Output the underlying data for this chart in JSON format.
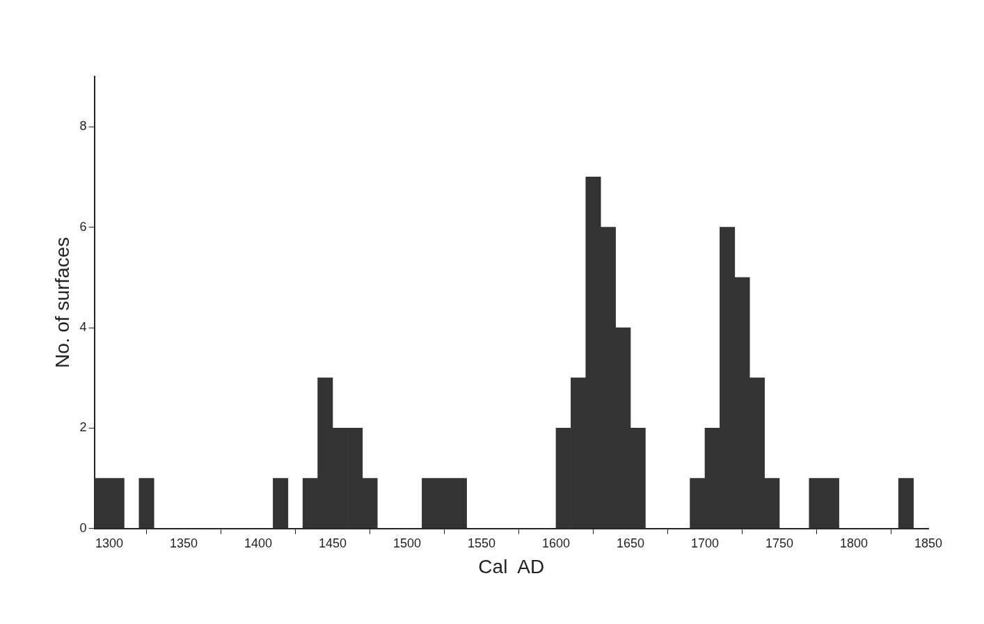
{
  "chart_data": {
    "type": "histogram",
    "xlabel": "Cal  AD",
    "ylabel": "No. of surfaces",
    "color": "#333333",
    "bins": [
      1290,
      1300,
      1310,
      1320,
      1330,
      1340,
      1350,
      1360,
      1370,
      1380,
      1390,
      1400,
      1410,
      1420,
      1430,
      1440,
      1450,
      1460,
      1470,
      1480,
      1490,
      1500,
      1510,
      1520,
      1530,
      1540,
      1550,
      1560,
      1570,
      1580,
      1590,
      1600,
      1610,
      1620,
      1630,
      1640,
      1650,
      1660,
      1670,
      1680,
      1690,
      1700,
      1710,
      1720,
      1730,
      1740,
      1750,
      1760,
      1770,
      1780,
      1790,
      1800,
      1810,
      1820,
      1830,
      1840
    ],
    "values": [
      1,
      1,
      0,
      1,
      0,
      0,
      0,
      0,
      0,
      0,
      0,
      0,
      1,
      0,
      1,
      3,
      2,
      2,
      1,
      0,
      0,
      0,
      1,
      1,
      1,
      0,
      0,
      0,
      0,
      0,
      0,
      2,
      3,
      7,
      6,
      4,
      2,
      0,
      0,
      0,
      1,
      2,
      6,
      5,
      3,
      1,
      0,
      0,
      1,
      1,
      0,
      0,
      0,
      0,
      1
    ],
    "xlim": [
      1290,
      1850
    ],
    "xticks": [
      1300,
      1350,
      1400,
      1450,
      1500,
      1550,
      1600,
      1650,
      1700,
      1750,
      1800,
      1850
    ],
    "ylim": [
      0,
      9
    ],
    "yticks": [
      0,
      2,
      4,
      6,
      8
    ],
    "grid": false,
    "legend": false
  }
}
